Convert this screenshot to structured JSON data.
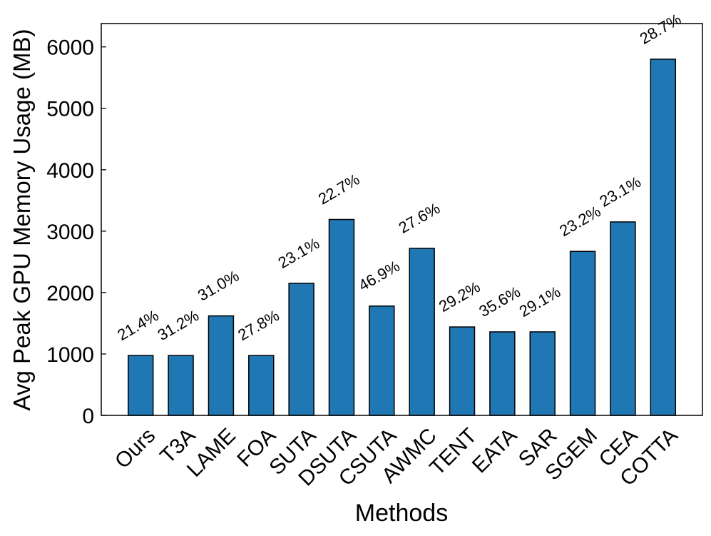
{
  "chart_data": {
    "type": "bar",
    "xlabel": "Methods",
    "ylabel": "Avg Peak GPU Memory Usage (MB)",
    "categories": [
      "Ours",
      "T3A",
      "LAME",
      "FOA",
      "SUTA",
      "DSUTA",
      "CSUTA",
      "AWMC",
      "TENT",
      "EATA",
      "SAR",
      "SGEM",
      "CEA",
      "COTTA"
    ],
    "values": [
      975,
      975,
      1620,
      975,
      2150,
      3190,
      1780,
      2720,
      1440,
      1360,
      1360,
      2670,
      3150,
      5800
    ],
    "annotations": [
      "21.4%",
      "31.2%",
      "31.0%",
      "27.8%",
      "23.1%",
      "22.7%",
      "46.9%",
      "27.6%",
      "29.2%",
      "35.6%",
      "29.1%",
      "23.2%",
      "23.1%",
      "28.7%"
    ],
    "color": "#1f77b4",
    "ylim": [
      0,
      6380
    ],
    "yticks": [
      0,
      1000,
      2000,
      3000,
      4000,
      5000,
      6000
    ]
  }
}
